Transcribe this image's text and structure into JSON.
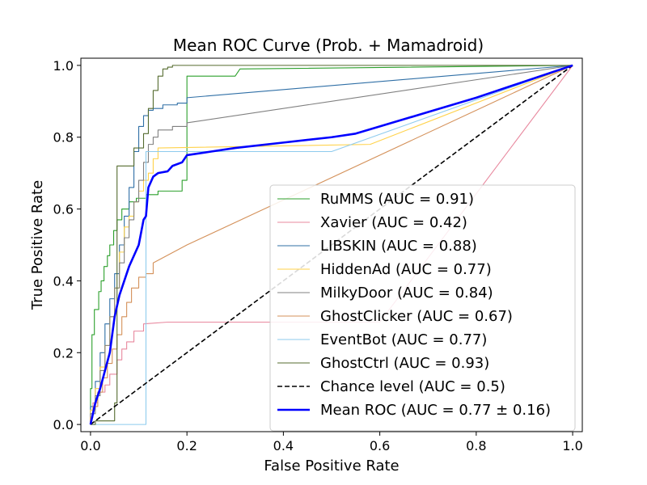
{
  "chart_data": {
    "type": "line",
    "title": "Mean ROC Curve (Prob. + Mamadroid)",
    "xlabel": "False Positive Rate",
    "ylabel": "True Positive Rate",
    "xlim": [
      -0.02,
      1.02
    ],
    "ylim": [
      -0.02,
      1.02
    ],
    "xticks": [
      0.0,
      0.2,
      0.4,
      0.6,
      0.8,
      1.0
    ],
    "yticks": [
      0.0,
      0.2,
      0.4,
      0.6,
      0.8,
      1.0
    ],
    "tick_labels": [
      "0.0",
      "0.2",
      "0.4",
      "0.6",
      "0.8",
      "1.0"
    ],
    "legend_position": "lower-right",
    "series": [
      {
        "name": "RuMMS (AUC = 0.91)",
        "color": "#2ca02c",
        "style": "step",
        "x": [
          0,
          0,
          0.003,
          0.003,
          0.008,
          0.008,
          0.017,
          0.017,
          0.022,
          0.022,
          0.028,
          0.028,
          0.035,
          0.035,
          0.04,
          0.04,
          0.048,
          0.048,
          0.055,
          0.055,
          0.065,
          0.065,
          0.08,
          0.08,
          0.095,
          0.095,
          0.115,
          0.115,
          0.14,
          0.14,
          0.19,
          0.19,
          0.2,
          0.2,
          0.3,
          0.31,
          1.0
        ],
        "y": [
          0,
          0.1,
          0.1,
          0.25,
          0.25,
          0.32,
          0.32,
          0.37,
          0.37,
          0.4,
          0.4,
          0.44,
          0.44,
          0.47,
          0.47,
          0.5,
          0.5,
          0.54,
          0.54,
          0.57,
          0.57,
          0.6,
          0.6,
          0.62,
          0.62,
          0.63,
          0.63,
          0.64,
          0.64,
          0.65,
          0.65,
          0.68,
          0.68,
          0.97,
          0.97,
          0.99,
          1.0
        ]
      },
      {
        "name": "Xavier (AUC = 0.42)",
        "color": "#e8889e",
        "style": "step",
        "x": [
          0,
          0,
          0.005,
          0.005,
          0.015,
          0.015,
          0.03,
          0.03,
          0.04,
          0.04,
          0.055,
          0.055,
          0.065,
          0.065,
          0.075,
          0.075,
          0.09,
          0.09,
          0.11,
          0.11,
          0.16,
          0.6,
          1.0
        ],
        "y": [
          0,
          0.03,
          0.03,
          0.06,
          0.06,
          0.09,
          0.09,
          0.11,
          0.11,
          0.14,
          0.14,
          0.18,
          0.18,
          0.21,
          0.21,
          0.23,
          0.23,
          0.26,
          0.26,
          0.28,
          0.285,
          0.285,
          1.0
        ]
      },
      {
        "name": "LIBSKIN (AUC = 0.88)",
        "color": "#2f6fa6",
        "style": "step",
        "x": [
          0,
          0,
          0.01,
          0.01,
          0.02,
          0.02,
          0.03,
          0.03,
          0.04,
          0.04,
          0.05,
          0.05,
          0.06,
          0.06,
          0.07,
          0.07,
          0.08,
          0.08,
          0.09,
          0.09,
          0.1,
          0.1,
          0.11,
          0.11,
          0.12,
          0.12,
          0.13,
          0.13,
          0.15,
          0.15,
          0.18,
          0.18,
          0.2,
          0.2,
          1.0
        ],
        "y": [
          0,
          0.05,
          0.05,
          0.12,
          0.12,
          0.2,
          0.2,
          0.28,
          0.28,
          0.35,
          0.35,
          0.42,
          0.42,
          0.5,
          0.5,
          0.58,
          0.58,
          0.66,
          0.66,
          0.76,
          0.76,
          0.83,
          0.83,
          0.86,
          0.86,
          0.875,
          0.875,
          0.88,
          0.88,
          0.89,
          0.89,
          0.895,
          0.895,
          0.91,
          1.0
        ]
      },
      {
        "name": "HiddenAd (AUC = 0.77)",
        "color": "#ffd24a",
        "style": "step",
        "x": [
          0,
          0,
          0.01,
          0.01,
          0.02,
          0.02,
          0.03,
          0.03,
          0.04,
          0.04,
          0.05,
          0.05,
          0.06,
          0.06,
          0.07,
          0.07,
          0.08,
          0.08,
          0.09,
          0.09,
          0.1,
          0.1,
          0.11,
          0.11,
          0.12,
          0.12,
          0.13,
          0.13,
          0.14,
          0.14,
          0.58,
          1.0
        ],
        "y": [
          0,
          0.04,
          0.04,
          0.1,
          0.1,
          0.16,
          0.16,
          0.22,
          0.22,
          0.3,
          0.3,
          0.38,
          0.38,
          0.48,
          0.48,
          0.55,
          0.55,
          0.58,
          0.58,
          0.62,
          0.62,
          0.65,
          0.65,
          0.68,
          0.68,
          0.7,
          0.7,
          0.74,
          0.74,
          0.77,
          0.78,
          1.0
        ]
      },
      {
        "name": "MilkyDoor (AUC = 0.84)",
        "color": "#808080",
        "style": "step",
        "x": [
          0,
          0,
          0.01,
          0.01,
          0.02,
          0.02,
          0.03,
          0.03,
          0.04,
          0.04,
          0.05,
          0.05,
          0.06,
          0.06,
          0.07,
          0.07,
          0.08,
          0.08,
          0.09,
          0.09,
          0.1,
          0.1,
          0.11,
          0.11,
          0.12,
          0.12,
          0.13,
          0.13,
          0.14,
          0.14,
          0.17,
          0.17,
          0.2,
          0.2,
          1.0
        ],
        "y": [
          0,
          0.03,
          0.03,
          0.08,
          0.08,
          0.15,
          0.15,
          0.22,
          0.22,
          0.3,
          0.3,
          0.38,
          0.38,
          0.45,
          0.45,
          0.52,
          0.52,
          0.57,
          0.57,
          0.62,
          0.62,
          0.68,
          0.68,
          0.73,
          0.73,
          0.78,
          0.78,
          0.8,
          0.8,
          0.82,
          0.82,
          0.83,
          0.83,
          0.84,
          1.0
        ]
      },
      {
        "name": "GhostClicker (AUC = 0.67)",
        "color": "#d4915a",
        "style": "step",
        "x": [
          0,
          0,
          0.005,
          0.005,
          0.015,
          0.015,
          0.025,
          0.025,
          0.035,
          0.035,
          0.045,
          0.045,
          0.055,
          0.055,
          0.065,
          0.065,
          0.075,
          0.075,
          0.085,
          0.085,
          0.1,
          0.1,
          0.115,
          0.115,
          0.13,
          0.13,
          0.2,
          1.0
        ],
        "y": [
          0,
          0.02,
          0.02,
          0.05,
          0.05,
          0.09,
          0.09,
          0.13,
          0.13,
          0.17,
          0.17,
          0.21,
          0.21,
          0.25,
          0.25,
          0.3,
          0.3,
          0.34,
          0.34,
          0.38,
          0.38,
          0.41,
          0.41,
          0.42,
          0.42,
          0.45,
          0.5,
          1.0
        ]
      },
      {
        "name": "EventBot (AUC = 0.77)",
        "color": "#8ecbee",
        "style": "step",
        "x": [
          0,
          0.115,
          0.115,
          0.5,
          1.0
        ],
        "y": [
          0,
          0,
          0.76,
          0.76,
          1.0
        ]
      },
      {
        "name": "GhostCtrl (AUC = 0.93)",
        "color": "#556b2f",
        "style": "step",
        "x": [
          0,
          0,
          0.01,
          0.01,
          0.02,
          0.02,
          0.03,
          0.03,
          0.045,
          0.045,
          0.05,
          0.05,
          0.055,
          0.055,
          0.09,
          0.09,
          0.11,
          0.11,
          0.12,
          0.12,
          0.13,
          0.13,
          0.14,
          0.14,
          0.15,
          0.15,
          0.16,
          0.16,
          0.17,
          0.17,
          0.19,
          1.0
        ],
        "y": [
          0,
          0.0,
          0.0,
          0.01,
          0.01,
          0.01,
          0.01,
          0.01,
          0.01,
          0.01,
          0.01,
          0.06,
          0.06,
          0.72,
          0.72,
          0.77,
          0.77,
          0.81,
          0.81,
          0.88,
          0.88,
          0.93,
          0.93,
          0.97,
          0.97,
          0.99,
          0.99,
          0.995,
          0.995,
          1.0,
          1.0,
          1.0
        ]
      },
      {
        "name": "Chance level (AUC = 0.5)",
        "color": "#000000",
        "style": "dashed",
        "x": [
          0,
          1.0
        ],
        "y": [
          0,
          1.0
        ]
      },
      {
        "name": "Mean ROC (AUC = 0.77 ± 0.16)",
        "color": "#0000ff",
        "style": "bold",
        "legend_text_color": "#cc0000",
        "x": [
          0,
          0.01,
          0.02,
          0.04,
          0.05,
          0.06,
          0.07,
          0.08,
          0.1,
          0.11,
          0.115,
          0.12,
          0.13,
          0.14,
          0.16,
          0.17,
          0.19,
          0.2,
          0.25,
          0.3,
          0.4,
          0.5,
          0.55,
          0.6,
          0.7,
          0.8,
          0.9,
          1.0
        ],
        "y": [
          0,
          0.06,
          0.1,
          0.2,
          0.3,
          0.36,
          0.4,
          0.44,
          0.5,
          0.57,
          0.58,
          0.66,
          0.69,
          0.7,
          0.705,
          0.72,
          0.73,
          0.75,
          0.76,
          0.77,
          0.785,
          0.8,
          0.81,
          0.83,
          0.87,
          0.91,
          0.955,
          1.0
        ]
      }
    ]
  }
}
